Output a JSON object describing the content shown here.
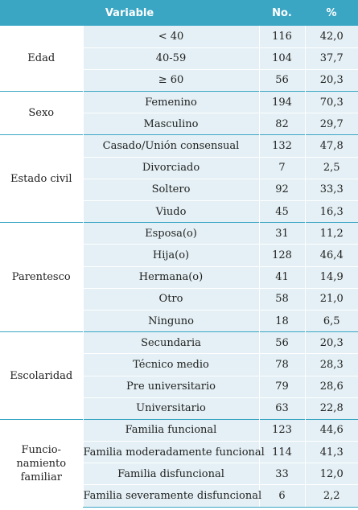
{
  "header": {
    "variable": "Variable",
    "no": "No.",
    "pct": "%"
  },
  "groups": [
    {
      "name": "Edad",
      "rows": [
        {
          "cat": "< 40",
          "no": "116",
          "pct": "42,0"
        },
        {
          "cat": "40-59",
          "no": "104",
          "pct": "37,7"
        },
        {
          "cat": "≥ 60",
          "no": "56",
          "pct": "20,3"
        }
      ]
    },
    {
      "name": "Sexo",
      "rows": [
        {
          "cat": "Femenino",
          "no": "194",
          "pct": "70,3"
        },
        {
          "cat": "Masculino",
          "no": "82",
          "pct": "29,7"
        }
      ]
    },
    {
      "name": "Estado civil",
      "rows": [
        {
          "cat": "Casado/Unión consensual",
          "no": "132",
          "pct": "47,8"
        },
        {
          "cat": "Divorciado",
          "no": "7",
          "pct": "2,5"
        },
        {
          "cat": "Soltero",
          "no": "92",
          "pct": "33,3"
        },
        {
          "cat": "Viudo",
          "no": "45",
          "pct": "16,3"
        }
      ]
    },
    {
      "name": "Parentesco",
      "rows": [
        {
          "cat": "Esposa(o)",
          "no": "31",
          "pct": "11,2"
        },
        {
          "cat": "Hija(o)",
          "no": "128",
          "pct": "46,4"
        },
        {
          "cat": "Hermana(o)",
          "no": "41",
          "pct": "14,9"
        },
        {
          "cat": "Otro",
          "no": "58",
          "pct": "21,0"
        },
        {
          "cat": "Ninguno",
          "no": "18",
          "pct": "6,5"
        }
      ]
    },
    {
      "name": "Escolaridad",
      "rows": [
        {
          "cat": "Secundaria",
          "no": "56",
          "pct": "20,3"
        },
        {
          "cat": "Técnico medio",
          "no": "78",
          "pct": "28,3"
        },
        {
          "cat": "Pre universitario",
          "no": "79",
          "pct": "28,6"
        },
        {
          "cat": "Universitario",
          "no": "63",
          "pct": "22,8"
        }
      ]
    },
    {
      "name_lines": [
        "Funcio-",
        "namiento",
        "familiar"
      ],
      "rows": [
        {
          "cat": "Familia funcional",
          "no": "123",
          "pct": "44,6"
        },
        {
          "cat": "Familia moderadamente funcional",
          "no": "114",
          "pct": "41,3"
        },
        {
          "cat": "Familia disfuncional",
          "no": "33",
          "pct": "12,0"
        },
        {
          "cat": "Familia severamente disfuncional",
          "no": "6",
          "pct": "2,2"
        }
      ]
    }
  ],
  "colors": {
    "header_bg": "#3aa6c4",
    "row_bg": "#e4f0f5",
    "rule": "#3aa6c4"
  }
}
